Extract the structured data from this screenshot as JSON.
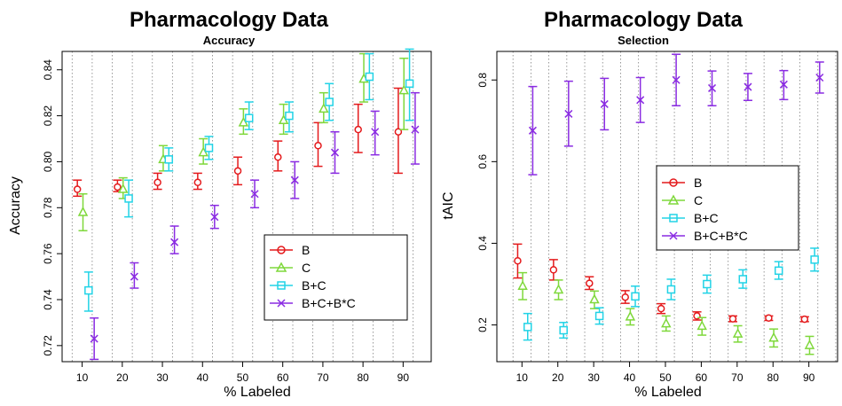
{
  "chart_data": [
    {
      "type": "scatter",
      "title": "Pharmacology Data",
      "subtitle": "Accuracy",
      "xlabel": "% Labeled",
      "ylabel": "Accuracy",
      "x_ticks": [
        "10",
        "20",
        "30",
        "40",
        "50",
        "60",
        "70",
        "80",
        "90"
      ],
      "y_ticks": [
        "0.72",
        "0.74",
        "0.76",
        "0.78",
        "0.80",
        "0.82",
        "0.84"
      ],
      "ylim": [
        0.713,
        0.848
      ],
      "legend_position": "center-right",
      "series": [
        {
          "name": "B",
          "color": "#e41a1c",
          "marker": "circle",
          "offset": -1.2,
          "x": [
            10,
            20,
            30,
            40,
            50,
            60,
            70,
            80,
            90
          ],
          "y": [
            0.788,
            0.789,
            0.791,
            0.791,
            0.796,
            0.802,
            0.807,
            0.814,
            0.813
          ],
          "lo": [
            0.785,
            0.787,
            0.788,
            0.788,
            0.79,
            0.796,
            0.798,
            0.804,
            0.795
          ],
          "hi": [
            0.792,
            0.792,
            0.795,
            0.795,
            0.802,
            0.809,
            0.817,
            0.825,
            0.832
          ]
        },
        {
          "name": "C",
          "color": "#7fd83b",
          "marker": "triangle",
          "offset": 0.2,
          "x": [
            10,
            20,
            30,
            40,
            50,
            60,
            70,
            80,
            90
          ],
          "y": [
            0.778,
            0.788,
            0.801,
            0.804,
            0.817,
            0.818,
            0.823,
            0.836,
            0.831
          ],
          "lo": [
            0.77,
            0.784,
            0.796,
            0.799,
            0.812,
            0.812,
            0.817,
            0.826,
            0.814
          ],
          "hi": [
            0.786,
            0.793,
            0.807,
            0.81,
            0.823,
            0.825,
            0.83,
            0.847,
            0.845
          ]
        },
        {
          "name": "B+C",
          "color": "#22d3e6",
          "marker": "square",
          "offset": 1.6,
          "x": [
            10,
            20,
            30,
            40,
            50,
            60,
            70,
            80,
            90
          ],
          "y": [
            0.744,
            0.784,
            0.801,
            0.806,
            0.819,
            0.82,
            0.826,
            0.837,
            0.834
          ],
          "lo": [
            0.735,
            0.776,
            0.796,
            0.801,
            0.814,
            0.813,
            0.818,
            0.827,
            0.818
          ],
          "hi": [
            0.752,
            0.792,
            0.806,
            0.811,
            0.826,
            0.826,
            0.834,
            0.847,
            0.849
          ]
        },
        {
          "name": "B+C+B*C",
          "color": "#8a2be2",
          "marker": "x",
          "offset": 3.0,
          "x": [
            10,
            20,
            30,
            40,
            50,
            60,
            70,
            80,
            90
          ],
          "y": [
            0.723,
            0.75,
            0.765,
            0.776,
            0.786,
            0.792,
            0.804,
            0.813,
            0.814
          ],
          "lo": [
            0.714,
            0.745,
            0.76,
            0.771,
            0.78,
            0.784,
            0.795,
            0.803,
            0.799
          ],
          "hi": [
            0.732,
            0.756,
            0.772,
            0.781,
            0.792,
            0.8,
            0.813,
            0.822,
            0.83
          ]
        }
      ]
    },
    {
      "type": "scatter",
      "title": "Pharmacology Data",
      "subtitle": "Selection",
      "xlabel": "% Labeled",
      "ylabel": "tAIC",
      "x_ticks": [
        "10",
        "20",
        "30",
        "40",
        "50",
        "60",
        "70",
        "80",
        "90"
      ],
      "y_ticks": [
        "0.2",
        "0.4",
        "0.6",
        "0.8"
      ],
      "ylim": [
        0.11,
        0.87
      ],
      "legend_position": "center",
      "series": [
        {
          "name": "B",
          "color": "#e41a1c",
          "marker": "circle",
          "offset": -1.2,
          "x": [
            10,
            20,
            30,
            40,
            50,
            60,
            70,
            80,
            90
          ],
          "y": [
            0.357,
            0.335,
            0.302,
            0.268,
            0.24,
            0.222,
            0.215,
            0.217,
            0.214
          ],
          "lo": [
            0.315,
            0.31,
            0.287,
            0.253,
            0.228,
            0.212,
            0.208,
            0.211,
            0.208
          ],
          "hi": [
            0.398,
            0.36,
            0.318,
            0.284,
            0.252,
            0.232,
            0.222,
            0.222,
            0.22
          ]
        },
        {
          "name": "C",
          "color": "#7fd83b",
          "marker": "triangle",
          "offset": 0.2,
          "x": [
            10,
            20,
            30,
            40,
            50,
            60,
            70,
            80,
            90
          ],
          "y": [
            0.295,
            0.286,
            0.262,
            0.22,
            0.203,
            0.197,
            0.178,
            0.168,
            0.15
          ],
          "lo": [
            0.262,
            0.262,
            0.24,
            0.2,
            0.185,
            0.175,
            0.158,
            0.146,
            0.128
          ],
          "hi": [
            0.328,
            0.31,
            0.283,
            0.24,
            0.222,
            0.218,
            0.198,
            0.19,
            0.172
          ]
        },
        {
          "name": "B+C",
          "color": "#22d3e6",
          "marker": "square",
          "offset": 1.6,
          "x": [
            10,
            20,
            30,
            40,
            50,
            60,
            70,
            80,
            90
          ],
          "y": [
            0.195,
            0.187,
            0.222,
            0.27,
            0.287,
            0.3,
            0.312,
            0.333,
            0.36
          ],
          "lo": [
            0.163,
            0.168,
            0.202,
            0.245,
            0.262,
            0.278,
            0.29,
            0.312,
            0.332
          ],
          "hi": [
            0.228,
            0.206,
            0.242,
            0.295,
            0.312,
            0.322,
            0.335,
            0.355,
            0.388
          ]
        },
        {
          "name": "B+C+B*C",
          "color": "#8a2be2",
          "marker": "x",
          "offset": 3.0,
          "x": [
            10,
            20,
            30,
            40,
            50,
            60,
            70,
            80,
            90
          ],
          "y": [
            0.676,
            0.717,
            0.741,
            0.751,
            0.8,
            0.78,
            0.783,
            0.789,
            0.806
          ],
          "lo": [
            0.568,
            0.638,
            0.678,
            0.696,
            0.737,
            0.737,
            0.75,
            0.752,
            0.768
          ],
          "hi": [
            0.784,
            0.797,
            0.804,
            0.806,
            0.863,
            0.822,
            0.816,
            0.823,
            0.844
          ]
        }
      ]
    }
  ]
}
